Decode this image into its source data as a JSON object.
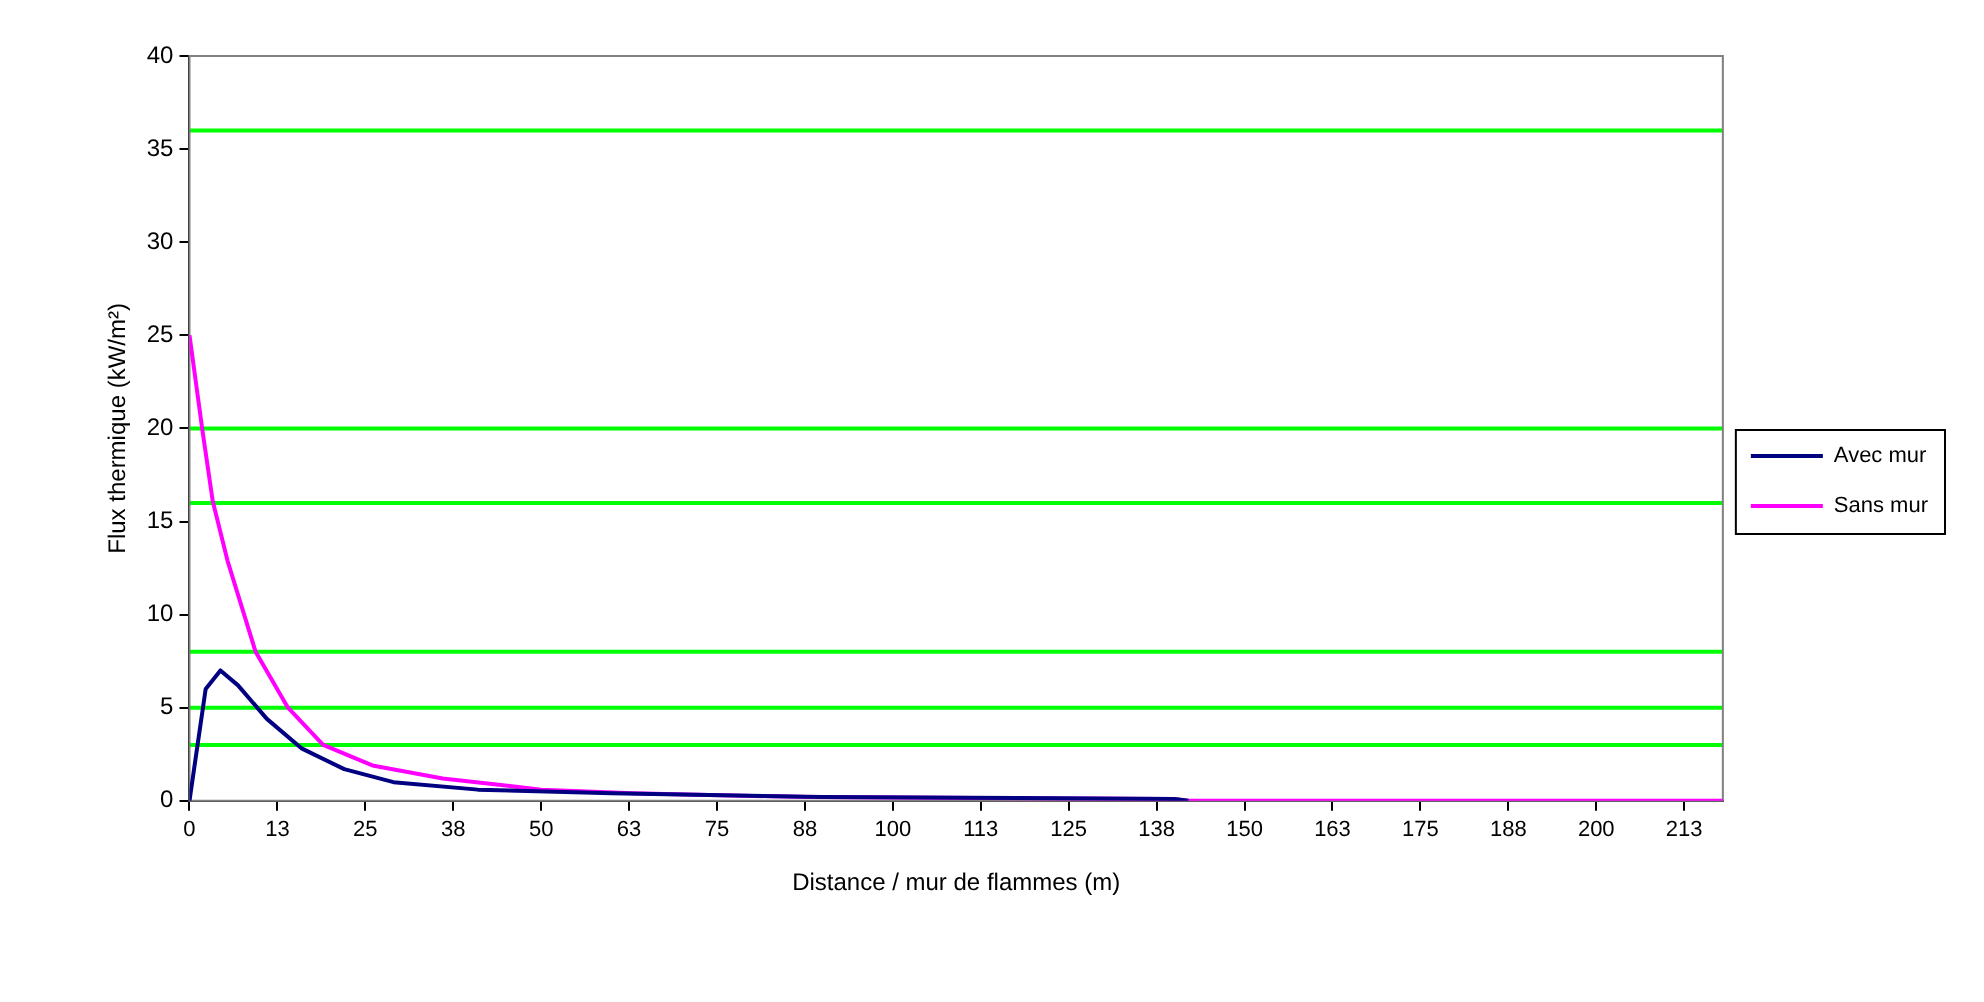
{
  "chart_data": {
    "type": "line",
    "xlabel": "Distance / mur de flammes (m)",
    "ylabel": "Flux thermique (kW/m²)",
    "xlim": [
      0,
      218
    ],
    "xticks": [
      0,
      {
        "value": 12.5,
        "label": "13"
      },
      25,
      {
        "value": 37.5,
        "label": "38"
      },
      50,
      {
        "value": 62.5,
        "label": "63"
      },
      75,
      {
        "value": 87.5,
        "label": "88"
      },
      100,
      {
        "value": 112.5,
        "label": "113"
      },
      125,
      {
        "value": 137.5,
        "label": "138"
      },
      150,
      {
        "value": 162.5,
        "label": "163"
      },
      175,
      {
        "value": 187.5,
        "label": "188"
      },
      200,
      {
        "value": 212.5,
        "label": "213"
      }
    ],
    "ylim": [
      0,
      40
    ],
    "yticks": [
      0,
      5,
      10,
      15,
      20,
      25,
      30,
      35,
      40
    ],
    "grid": false,
    "legend": "right",
    "marker": "none",
    "line_style": "solid",
    "series": [
      {
        "name": "Avec mur",
        "color": "#000080",
        "x": [
          0,
          0.8,
          2.3,
          4.4,
          6.9,
          11,
          16,
          22,
          29,
          41,
          60,
          90,
          140,
          142
        ],
        "values": [
          0,
          2.1,
          6.0,
          7.0,
          6.2,
          4.4,
          2.8,
          1.7,
          1.0,
          0.6,
          0.4,
          0.2,
          0.1,
          0
        ]
      },
      {
        "name": "Sans mur",
        "color": "#ff00ff",
        "x": [
          0,
          1.8,
          3.3,
          5.4,
          9.4,
          14,
          19,
          26,
          36,
          50,
          63,
          88,
          140,
          142,
          218
        ],
        "values": [
          25,
          20,
          16.1,
          12.9,
          8.0,
          5.0,
          3.0,
          1.9,
          1.2,
          0.6,
          0.4,
          0.2,
          0.1,
          0,
          0
        ]
      }
    ],
    "ref_lines": [
      {
        "axis": "y",
        "value": 3,
        "color": "#00ff00"
      },
      {
        "axis": "y",
        "value": 5,
        "color": "#00ff00"
      },
      {
        "axis": "y",
        "value": 8,
        "color": "#00ff00"
      },
      {
        "axis": "y",
        "value": 16,
        "color": "#00ff00"
      },
      {
        "axis": "y",
        "value": 20,
        "color": "#00ff00"
      },
      {
        "axis": "y",
        "value": 36,
        "color": "#00ff00"
      }
    ]
  }
}
